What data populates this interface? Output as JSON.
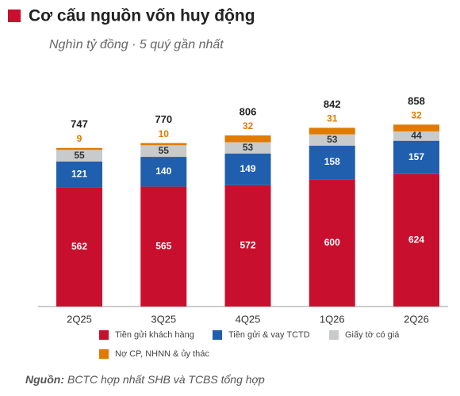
{
  "chart_data": {
    "type": "stacked-bar",
    "title": "Cơ cấu nguồn vốn huy động",
    "subtitle": "Nghìn tỷ đồng · 5 quý gần nhất",
    "categories": [
      "2Q25",
      "3Q25",
      "4Q25",
      "1Q26",
      "2Q26"
    ],
    "series": [
      {
        "name": "Tiền gửi khách hàng",
        "color": "#c8102e",
        "label_color": "#ffffff",
        "values": [
          562,
          565,
          572,
          600,
          624
        ]
      },
      {
        "name": "Tiền gửi & vay TCTD",
        "color": "#1f5fae",
        "label_color": "#ffffff",
        "values": [
          121,
          140,
          149,
          158,
          157
        ]
      },
      {
        "name": "Giấy tờ có giá",
        "color": "#c9cacc",
        "label_color": "#333333",
        "values": [
          55,
          55,
          53,
          53,
          44
        ]
      },
      {
        "name": "Nợ CP, NHNN & ủy thác",
        "color": "#e07b00",
        "label_color": "#e07b00",
        "values": [
          9,
          10,
          32,
          31,
          32
        ]
      }
    ],
    "totals": [
      747,
      770,
      806,
      842,
      858
    ],
    "source": {
      "label": "Nguồn:",
      "text": "BCTC hợp nhất SHB và TCBS tổng hợp"
    }
  }
}
